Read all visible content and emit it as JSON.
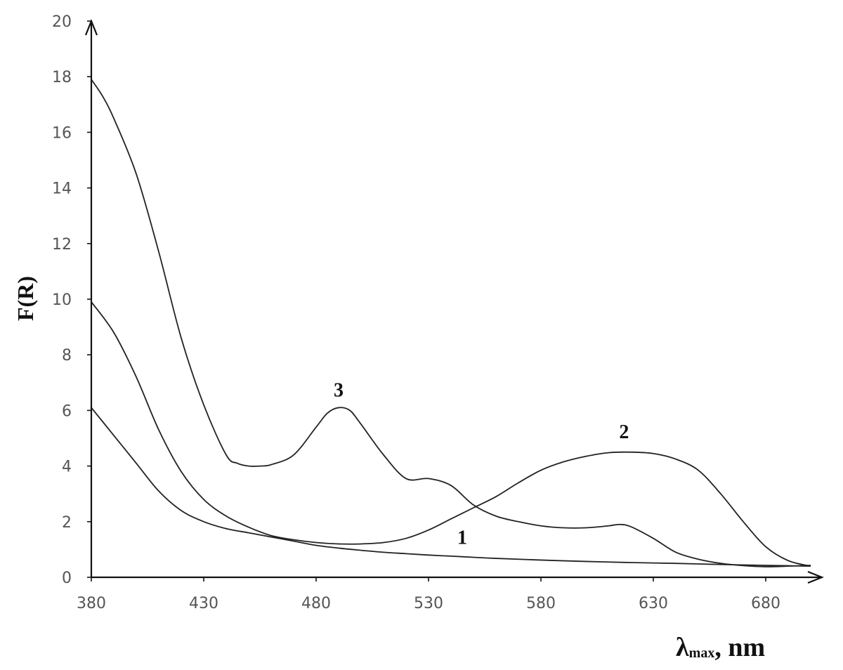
{
  "chart_data": {
    "type": "line",
    "ylabel": "F(R)",
    "xlabel": {
      "main": "λ",
      "sub": "max",
      "unit": ", nm"
    },
    "xlim": [
      380,
      705
    ],
    "ylim": [
      0,
      20
    ],
    "x_ticks": [
      "380",
      "430",
      "480",
      "530",
      "580",
      "630",
      "680"
    ],
    "y_ticks": [
      "0",
      "2",
      "4",
      "6",
      "8",
      "10",
      "12",
      "14",
      "16",
      "18",
      "20"
    ],
    "grid": false,
    "legend": "none",
    "series": [
      {
        "label": "1",
        "label_at": [
          545,
          1.2
        ],
        "points": [
          [
            380,
            6.1
          ],
          [
            390,
            5.1
          ],
          [
            400,
            4.1
          ],
          [
            410,
            3.1
          ],
          [
            420,
            2.4
          ],
          [
            430,
            2.0
          ],
          [
            440,
            1.75
          ],
          [
            450,
            1.6
          ],
          [
            460,
            1.45
          ],
          [
            470,
            1.3
          ],
          [
            480,
            1.15
          ],
          [
            490,
            1.05
          ],
          [
            500,
            0.97
          ],
          [
            510,
            0.9
          ],
          [
            520,
            0.85
          ],
          [
            530,
            0.8
          ],
          [
            540,
            0.76
          ],
          [
            550,
            0.72
          ],
          [
            560,
            0.68
          ],
          [
            580,
            0.62
          ],
          [
            600,
            0.57
          ],
          [
            620,
            0.53
          ],
          [
            640,
            0.5
          ],
          [
            660,
            0.46
          ],
          [
            680,
            0.43
          ],
          [
            700,
            0.4
          ]
        ]
      },
      {
        "label": "2",
        "label_at": [
          617,
          5.0
        ],
        "points": [
          [
            380,
            9.9
          ],
          [
            390,
            8.8
          ],
          [
            400,
            7.2
          ],
          [
            410,
            5.3
          ],
          [
            420,
            3.8
          ],
          [
            430,
            2.8
          ],
          [
            440,
            2.2
          ],
          [
            450,
            1.8
          ],
          [
            460,
            1.5
          ],
          [
            470,
            1.35
          ],
          [
            480,
            1.25
          ],
          [
            490,
            1.2
          ],
          [
            500,
            1.2
          ],
          [
            510,
            1.25
          ],
          [
            520,
            1.4
          ],
          [
            530,
            1.7
          ],
          [
            540,
            2.1
          ],
          [
            550,
            2.5
          ],
          [
            560,
            2.9
          ],
          [
            570,
            3.4
          ],
          [
            580,
            3.85
          ],
          [
            590,
            4.15
          ],
          [
            600,
            4.35
          ],
          [
            610,
            4.48
          ],
          [
            620,
            4.5
          ],
          [
            630,
            4.45
          ],
          [
            640,
            4.25
          ],
          [
            650,
            3.85
          ],
          [
            660,
            3.0
          ],
          [
            670,
            2.0
          ],
          [
            680,
            1.1
          ],
          [
            690,
            0.6
          ],
          [
            700,
            0.4
          ]
        ]
      },
      {
        "label": "3",
        "label_at": [
          490,
          6.5
        ],
        "points": [
          [
            380,
            17.9
          ],
          [
            385,
            17.3
          ],
          [
            390,
            16.5
          ],
          [
            400,
            14.5
          ],
          [
            410,
            11.7
          ],
          [
            420,
            8.6
          ],
          [
            430,
            6.2
          ],
          [
            440,
            4.4
          ],
          [
            445,
            4.1
          ],
          [
            450,
            4.0
          ],
          [
            455,
            4.0
          ],
          [
            460,
            4.05
          ],
          [
            470,
            4.4
          ],
          [
            480,
            5.4
          ],
          [
            485,
            5.9
          ],
          [
            490,
            6.1
          ],
          [
            495,
            6.0
          ],
          [
            500,
            5.5
          ],
          [
            510,
            4.4
          ],
          [
            520,
            3.55
          ],
          [
            530,
            3.55
          ],
          [
            540,
            3.3
          ],
          [
            550,
            2.6
          ],
          [
            560,
            2.2
          ],
          [
            570,
            2.0
          ],
          [
            580,
            1.85
          ],
          [
            590,
            1.78
          ],
          [
            600,
            1.78
          ],
          [
            610,
            1.85
          ],
          [
            615,
            1.9
          ],
          [
            620,
            1.82
          ],
          [
            630,
            1.4
          ],
          [
            640,
            0.9
          ],
          [
            650,
            0.65
          ],
          [
            660,
            0.5
          ],
          [
            670,
            0.42
          ],
          [
            680,
            0.38
          ],
          [
            690,
            0.4
          ],
          [
            700,
            0.43
          ]
        ]
      }
    ]
  }
}
